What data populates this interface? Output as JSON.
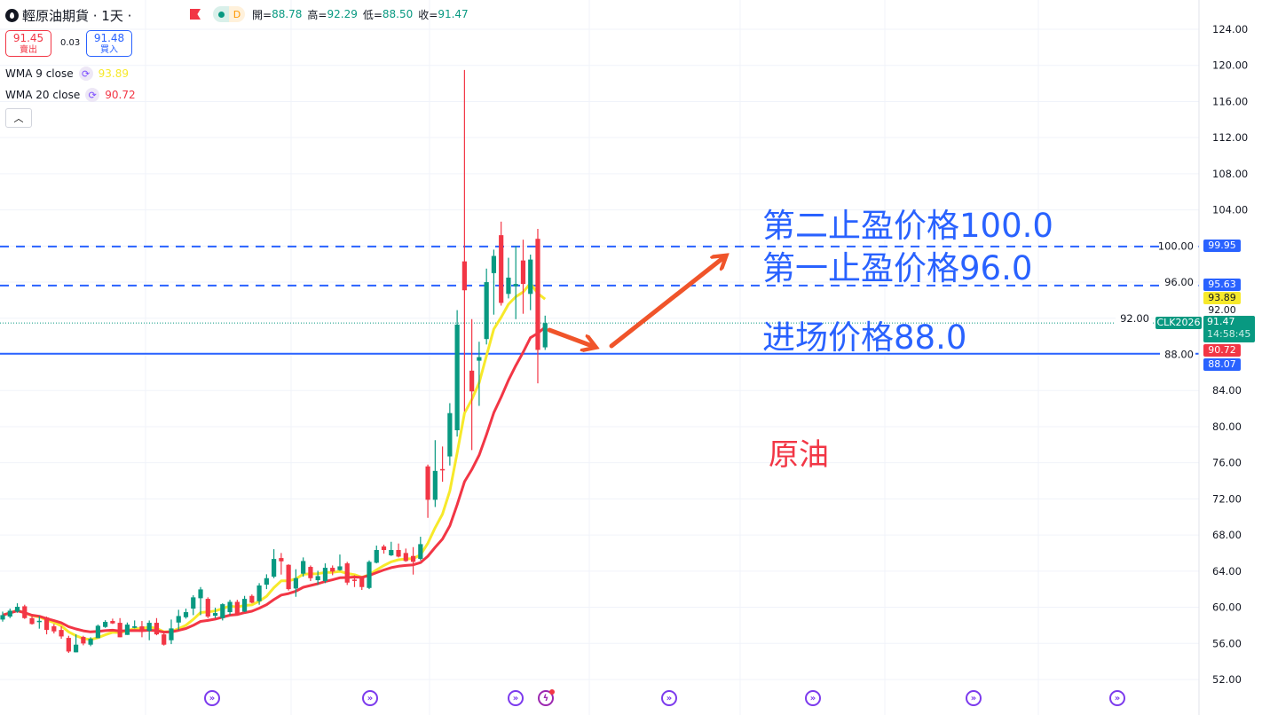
{
  "header": {
    "title": "輕原油期貨 · 1天 ·",
    "badge_d": "D",
    "ohlc": [
      {
        "label": "開=",
        "value": "88.78"
      },
      {
        "label": "高=",
        "value": "92.29"
      },
      {
        "label": "低=",
        "value": "88.50"
      },
      {
        "label": "收=",
        "value": "91.47"
      }
    ]
  },
  "trade": {
    "sell_price": "91.45",
    "sell_label": "賣出",
    "spread": "0.03",
    "buy_price": "91.48",
    "buy_label": "買入"
  },
  "indicators": [
    {
      "name": "WMA 9 close",
      "value": "93.89",
      "color": "#f7e92a",
      "period": 9
    },
    {
      "name": "WMA 20 close",
      "value": "90.72",
      "color": "#f23645",
      "period": 20
    }
  ],
  "price_axis": {
    "ticks": [
      "124.00",
      "120.00",
      "116.00",
      "112.00",
      "108.00",
      "104.00",
      "100.00",
      "96.00",
      "92.00",
      "88.00",
      "84.00",
      "80.00",
      "76.00",
      "72.00",
      "68.00",
      "64.00",
      "60.00",
      "56.00",
      "52.00"
    ],
    "tags": {
      "tp2": "99.95",
      "tp1": "95.63",
      "wma9": "93.89",
      "hidden": "92.00",
      "symbol": "CLK2026",
      "last": "91.47",
      "countdown": "14:58:45",
      "wma20": "90.72",
      "entry": "88.07"
    }
  },
  "annotations": {
    "tp2": "第二止盈价格100.0",
    "tp1": "第一止盈价格96.0",
    "entry_a": "进场",
    "entry_b": "价格88.0",
    "asset": "原油"
  },
  "colors": {
    "up": "#089981",
    "down": "#f23645",
    "line_blue": "#2962ff",
    "arrow": "#f0542a",
    "event": "#7c3aed"
  },
  "events": [
    "economic-event-icon",
    "economic-event-icon",
    "economic-event-icon",
    "lightning-event-icon",
    "economic-event-icon",
    "economic-event-icon",
    "economic-event-icon",
    "economic-event-icon"
  ],
  "chart_data": {
    "type": "candlestick",
    "interval": "1天",
    "ylim": [
      52,
      124
    ],
    "horizontal_lines": [
      {
        "price": 99.95,
        "style": "dashed"
      },
      {
        "price": 95.63,
        "style": "dashed"
      },
      {
        "price": 88.07,
        "style": "solid"
      },
      {
        "price": 91.47,
        "style": "dotted"
      }
    ],
    "candles_ohlc": [
      [
        58.64,
        59.52,
        58.41,
        59.13
      ],
      [
        58.97,
        59.85,
        58.8,
        59.62
      ],
      [
        59.52,
        60.44,
        59.39,
        60.05
      ],
      [
        60.11,
        60.28,
        58.71,
        58.8
      ],
      [
        58.8,
        59.13,
        58.08,
        58.15
      ],
      [
        58.45,
        59.03,
        57.63,
        58.5
      ],
      [
        58.87,
        58.97,
        57.0,
        57.49
      ],
      [
        57.89,
        58.15,
        57.1,
        57.33
      ],
      [
        57.49,
        57.89,
        56.51,
        56.77
      ],
      [
        56.61,
        56.84,
        54.94,
        55.1
      ],
      [
        55.01,
        57.0,
        55.0,
        55.86
      ],
      [
        56.71,
        56.84,
        55.79,
        55.99
      ],
      [
        55.86,
        56.68,
        55.69,
        56.51
      ],
      [
        56.58,
        58.08,
        56.58,
        57.95
      ],
      [
        57.82,
        58.57,
        57.72,
        58.38
      ],
      [
        58.48,
        58.74,
        58.15,
        58.21
      ],
      [
        58.28,
        58.8,
        56.68,
        56.68
      ],
      [
        56.94,
        58.31,
        56.94,
        58.08
      ],
      [
        57.72,
        58.54,
        57.66,
        57.89
      ],
      [
        57.89,
        58.48,
        56.68,
        57.43
      ],
      [
        57.39,
        58.54,
        56.35,
        58.28
      ],
      [
        58.28,
        58.8,
        56.9,
        57.0
      ],
      [
        57.0,
        57.17,
        55.76,
        55.86
      ],
      [
        56.35,
        58.64,
        55.92,
        57.66
      ],
      [
        58.31,
        59.72,
        57.49,
        59.03
      ],
      [
        58.9,
        59.85,
        58.74,
        59.46
      ],
      [
        59.85,
        61.33,
        59.13,
        61.1
      ],
      [
        61.0,
        62.24,
        59.13,
        61.98
      ],
      [
        60.93,
        61.1,
        58.8,
        58.97
      ],
      [
        59.06,
        59.95,
        58.8,
        59.36
      ],
      [
        58.8,
        60.44,
        58.54,
        60.34
      ],
      [
        59.46,
        60.83,
        59.13,
        60.6
      ],
      [
        60.6,
        60.83,
        59.07,
        59.3
      ],
      [
        59.52,
        61.26,
        59.46,
        60.93
      ],
      [
        61.26,
        61.42,
        60.44,
        60.51
      ],
      [
        60.67,
        62.67,
        60.28,
        62.41
      ],
      [
        62.5,
        63.65,
        62.01,
        63.22
      ],
      [
        63.39,
        66.43,
        63.22,
        65.35
      ],
      [
        65.45,
        66.01,
        63.62,
        65.09
      ],
      [
        64.7,
        64.76,
        61.85,
        62.01
      ],
      [
        62.08,
        64.21,
        61.16,
        63.22
      ],
      [
        63.72,
        65.52,
        63.39,
        65.12
      ],
      [
        64.47,
        64.63,
        62.9,
        63.22
      ],
      [
        63.0,
        64.04,
        62.47,
        63.45
      ],
      [
        62.9,
        64.86,
        62.67,
        64.37
      ],
      [
        64.37,
        64.63,
        63.55,
        63.95
      ],
      [
        64.11,
        65.84,
        64.04,
        64.53
      ],
      [
        64.86,
        65.03,
        62.47,
        62.73
      ],
      [
        63.06,
        63.55,
        62.24,
        62.96
      ],
      [
        63.32,
        63.45,
        61.92,
        62.24
      ],
      [
        62.14,
        65.19,
        62.01,
        65.03
      ],
      [
        64.93,
        66.83,
        64.86,
        66.34
      ],
      [
        66.73,
        66.93,
        65.94,
        66.34
      ],
      [
        65.75,
        67.25,
        65.68,
        66.34
      ],
      [
        66.34,
        67.06,
        65.52,
        65.61
      ],
      [
        66.01,
        66.5,
        65.03,
        65.12
      ],
      [
        65.68,
        66.66,
        63.62,
        65.03
      ],
      [
        65.35,
        67.81,
        65.19,
        66.99
      ],
      [
        75.6,
        75.8,
        69.9,
        71.9
      ],
      [
        71.9,
        78.5,
        71.1,
        75.1
      ],
      [
        75.3,
        77.8,
        73.9,
        75.2
      ],
      [
        76.7,
        82.6,
        75.7,
        81.5
      ],
      [
        79.6,
        92.9,
        78.9,
        91.3
      ],
      [
        98.3,
        119.5,
        81.7,
        95.1
      ],
      [
        86.2,
        91.9,
        77.4,
        83.9
      ],
      [
        87.3,
        89.4,
        82.3,
        87.7
      ],
      [
        89.7,
        97.5,
        89.1,
        96.0
      ],
      [
        97.0,
        99.6,
        92.4,
        98.9
      ],
      [
        101.2,
        102.7,
        93.4,
        93.7
      ],
      [
        94.7,
        98.7,
        94.2,
        96.5
      ],
      [
        95.55,
        100.0,
        91.9,
        95.8
      ],
      [
        98.4,
        100.7,
        92.5,
        95.8
      ],
      [
        94.7,
        99.05,
        92.9,
        98.5
      ],
      [
        100.8,
        101.9,
        84.8,
        88.5
      ],
      [
        88.78,
        92.29,
        88.5,
        91.47
      ]
    ]
  }
}
